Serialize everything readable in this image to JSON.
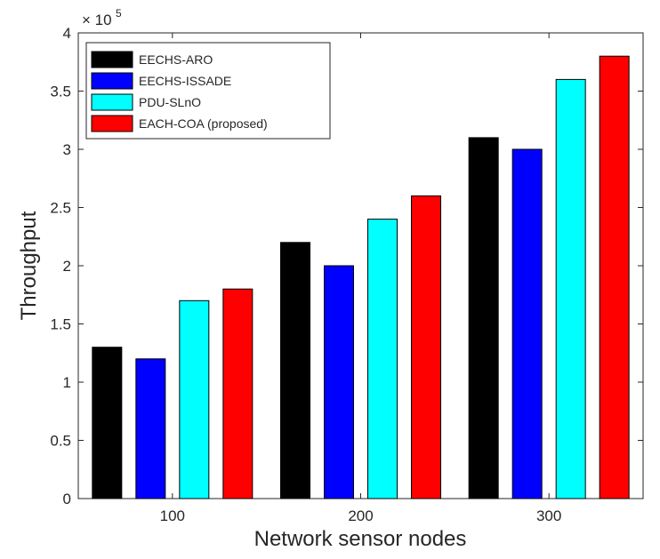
{
  "chart_data": {
    "type": "bar",
    "xlabel": "Network sensor nodes",
    "ylabel": "Throughput",
    "exponent_label": "× 10",
    "exponent_power": "5",
    "categories": [
      "100",
      "200",
      "300"
    ],
    "ylim": [
      0,
      4
    ],
    "yticks": [
      "0",
      "0.5",
      "1",
      "1.5",
      "2",
      "2.5",
      "3",
      "3.5",
      "4"
    ],
    "ytick_values": [
      0,
      0.5,
      1,
      1.5,
      2,
      2.5,
      3,
      3.5,
      4
    ],
    "scale": 100000,
    "grid": false,
    "legend_position": "top-left",
    "series": [
      {
        "name": "EECHS-ARO",
        "color": "#000000",
        "values": [
          1.3,
          2.2,
          3.1
        ]
      },
      {
        "name": "EECHS-ISSADE",
        "color": "#0000ff",
        "values": [
          1.2,
          2.0,
          3.0
        ]
      },
      {
        "name": "PDU-SLnO",
        "color": "#00ffff",
        "values": [
          1.7,
          2.4,
          3.6
        ]
      },
      {
        "name": "EACH-COA (proposed)",
        "color": "#ff0000",
        "values": [
          1.8,
          2.6,
          3.8
        ]
      }
    ]
  }
}
